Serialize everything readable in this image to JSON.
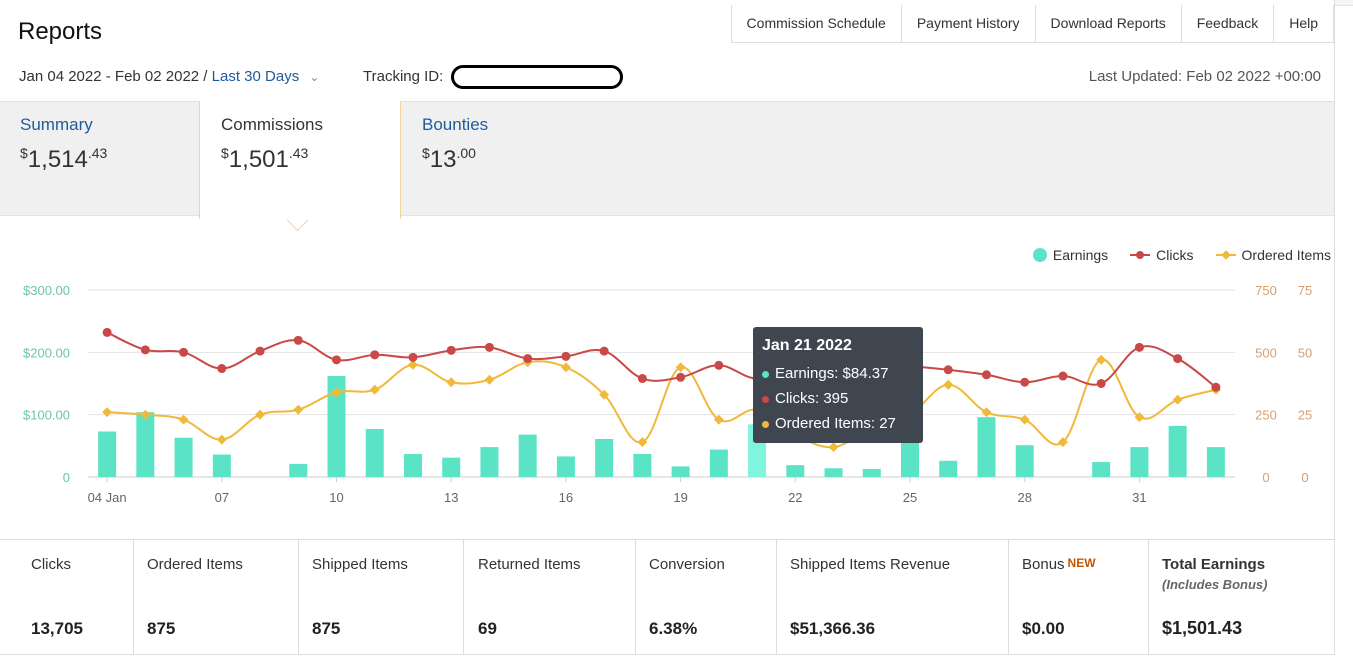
{
  "header": {
    "title": "Reports",
    "nav": [
      "Commission Schedule",
      "Payment History",
      "Download Reports",
      "Feedback",
      "Help"
    ],
    "date_range": "Jan 04 2022 - Feb 02 2022 /",
    "range_link": "Last 30 Days",
    "tracking_label": "Tracking ID:",
    "last_updated": "Last Updated: Feb 02 2022 +00:00"
  },
  "cards": {
    "summary": {
      "label": "Summary",
      "currency": "$",
      "whole": "1,514",
      "cents": ".43"
    },
    "commissions": {
      "label": "Commissions",
      "currency": "$",
      "whole": "1,501",
      "cents": ".43"
    },
    "bounties": {
      "label": "Bounties",
      "currency": "$",
      "whole": "13",
      "cents": ".00"
    }
  },
  "colors": {
    "earnings": "#5be3c6",
    "clicks": "#c94848",
    "ordered": "#f0b93a",
    "link": "#1e5a9c"
  },
  "legend": {
    "earnings": "Earnings",
    "clicks": "Clicks",
    "ordered": "Ordered Items"
  },
  "chart_data": {
    "type": "bar",
    "x_labels": [
      "04 Jan",
      "07",
      "10",
      "13",
      "16",
      "19",
      "22",
      "25",
      "28",
      "31"
    ],
    "x_label_index": [
      0,
      3,
      6,
      9,
      12,
      15,
      18,
      21,
      24,
      27
    ],
    "y_left_ticks": [
      "$300.00",
      "$200.00",
      "$100.00",
      "0"
    ],
    "y_clicks_ticks": [
      "750",
      "500",
      "250",
      "0"
    ],
    "y_items_ticks": [
      "75",
      "50",
      "25",
      "0"
    ],
    "ylim_earnings": [
      0,
      300
    ],
    "ylim_clicks": [
      0,
      750
    ],
    "ylim_items": [
      0,
      75
    ],
    "highlight_index": 17,
    "series": [
      {
        "name": "Earnings",
        "type": "bar",
        "values": [
          73,
          104,
          63,
          36,
          0,
          21,
          162,
          77,
          37,
          31,
          48,
          68,
          33,
          61,
          37,
          17,
          44,
          84.37,
          19,
          14,
          13,
          57,
          26,
          96,
          51,
          0,
          24,
          48,
          82,
          48
        ]
      },
      {
        "name": "Clicks",
        "type": "line",
        "values": [
          580,
          510,
          500,
          435,
          505,
          548,
          470,
          490,
          480,
          508,
          520,
          475,
          484,
          505,
          395,
          400,
          448,
          395,
          450,
          440,
          460,
          445,
          430,
          410,
          380,
          405,
          375,
          520,
          475,
          360
        ]
      },
      {
        "name": "Ordered Items",
        "type": "line",
        "values": [
          26,
          25,
          23,
          15,
          25,
          27,
          34,
          35,
          45,
          38,
          39,
          46,
          44,
          33,
          14,
          44,
          23,
          27,
          17,
          12,
          20,
          25,
          37,
          26,
          23,
          14,
          47,
          24,
          31,
          35
        ]
      }
    ]
  },
  "tooltip": {
    "title": "Jan 21 2022",
    "earnings": "Earnings: $84.37",
    "clicks": "Clicks: 395",
    "ordered": "Ordered Items: 27"
  },
  "metrics": [
    {
      "label": "Clicks",
      "value": "13,705"
    },
    {
      "label": "Ordered Items",
      "value": "875"
    },
    {
      "label": "Shipped Items",
      "value": "875"
    },
    {
      "label": "Returned Items",
      "value": "69"
    },
    {
      "label": "Conversion",
      "value": "6.38%"
    },
    {
      "label": "Shipped Items Revenue",
      "value": "$51,366.36"
    },
    {
      "label": "Bonus",
      "badge": "NEW",
      "value": "$0.00"
    },
    {
      "label": "Total Earnings",
      "sub": "(Includes Bonus)",
      "value": "$1,501.43"
    }
  ]
}
